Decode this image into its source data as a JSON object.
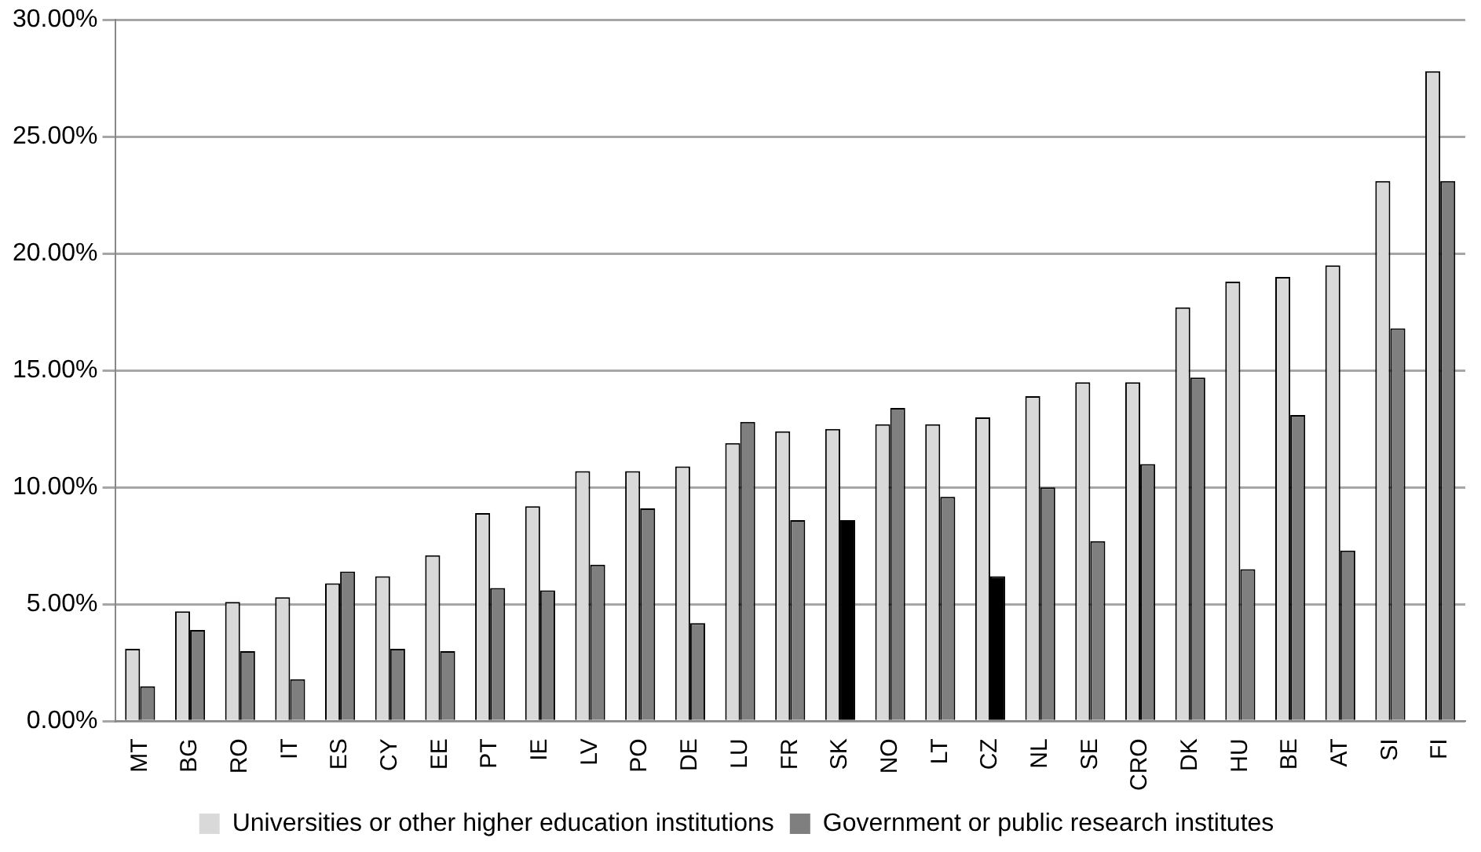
{
  "chart_data": {
    "type": "bar",
    "categories": [
      "MT",
      "BG",
      "RO",
      "IT",
      "ES",
      "CY",
      "EE",
      "PT",
      "IE",
      "LV",
      "PO",
      "DE",
      "LU",
      "FR",
      "SK",
      "NO",
      "LT",
      "CZ",
      "NL",
      "SE",
      "CRO",
      "DK",
      "HU",
      "BE",
      "AT",
      "SI",
      "FI"
    ],
    "series": [
      {
        "name": "Universities or other higher education institutions",
        "color": "#d9d9d9",
        "values": [
          3.1,
          4.7,
          5.1,
          5.3,
          5.9,
          6.2,
          7.1,
          8.9,
          9.2,
          10.7,
          10.7,
          10.9,
          11.9,
          12.4,
          12.5,
          12.7,
          12.7,
          13.0,
          13.9,
          14.5,
          14.5,
          17.7,
          18.8,
          19.0,
          19.5,
          23.1,
          27.8
        ]
      },
      {
        "name": "Government or public research institutes",
        "color": "#7f7f7f",
        "colors": [
          "#7f7f7f",
          "#7f7f7f",
          "#7f7f7f",
          "#7f7f7f",
          "#7f7f7f",
          "#7f7f7f",
          "#7f7f7f",
          "#7f7f7f",
          "#7f7f7f",
          "#7f7f7f",
          "#7f7f7f",
          "#7f7f7f",
          "#7f7f7f",
          "#7f7f7f",
          "#000000",
          "#7f7f7f",
          "#7f7f7f",
          "#000000",
          "#7f7f7f",
          "#7f7f7f",
          "#7f7f7f",
          "#7f7f7f",
          "#7f7f7f",
          "#7f7f7f",
          "#7f7f7f",
          "#7f7f7f",
          "#7f7f7f"
        ],
        "values": [
          1.5,
          3.9,
          3.0,
          1.8,
          6.4,
          3.1,
          3.0,
          5.7,
          5.6,
          6.7,
          9.1,
          4.2,
          12.8,
          8.6,
          8.6,
          13.4,
          9.6,
          6.2,
          10.0,
          7.7,
          11.0,
          14.7,
          6.5,
          13.1,
          7.3,
          16.8,
          23.1
        ]
      }
    ],
    "ylim": [
      0,
      30
    ],
    "yticks": [
      {
        "value": 0,
        "label": "0.00%"
      },
      {
        "value": 5,
        "label": "5.00%"
      },
      {
        "value": 10,
        "label": "10.00%"
      },
      {
        "value": 15,
        "label": "15.00%"
      },
      {
        "value": 20,
        "label": "20.00%"
      },
      {
        "value": 25,
        "label": "25.00%"
      },
      {
        "value": 30,
        "label": "30.00%"
      }
    ],
    "grid": "y",
    "legend": "bottom"
  }
}
